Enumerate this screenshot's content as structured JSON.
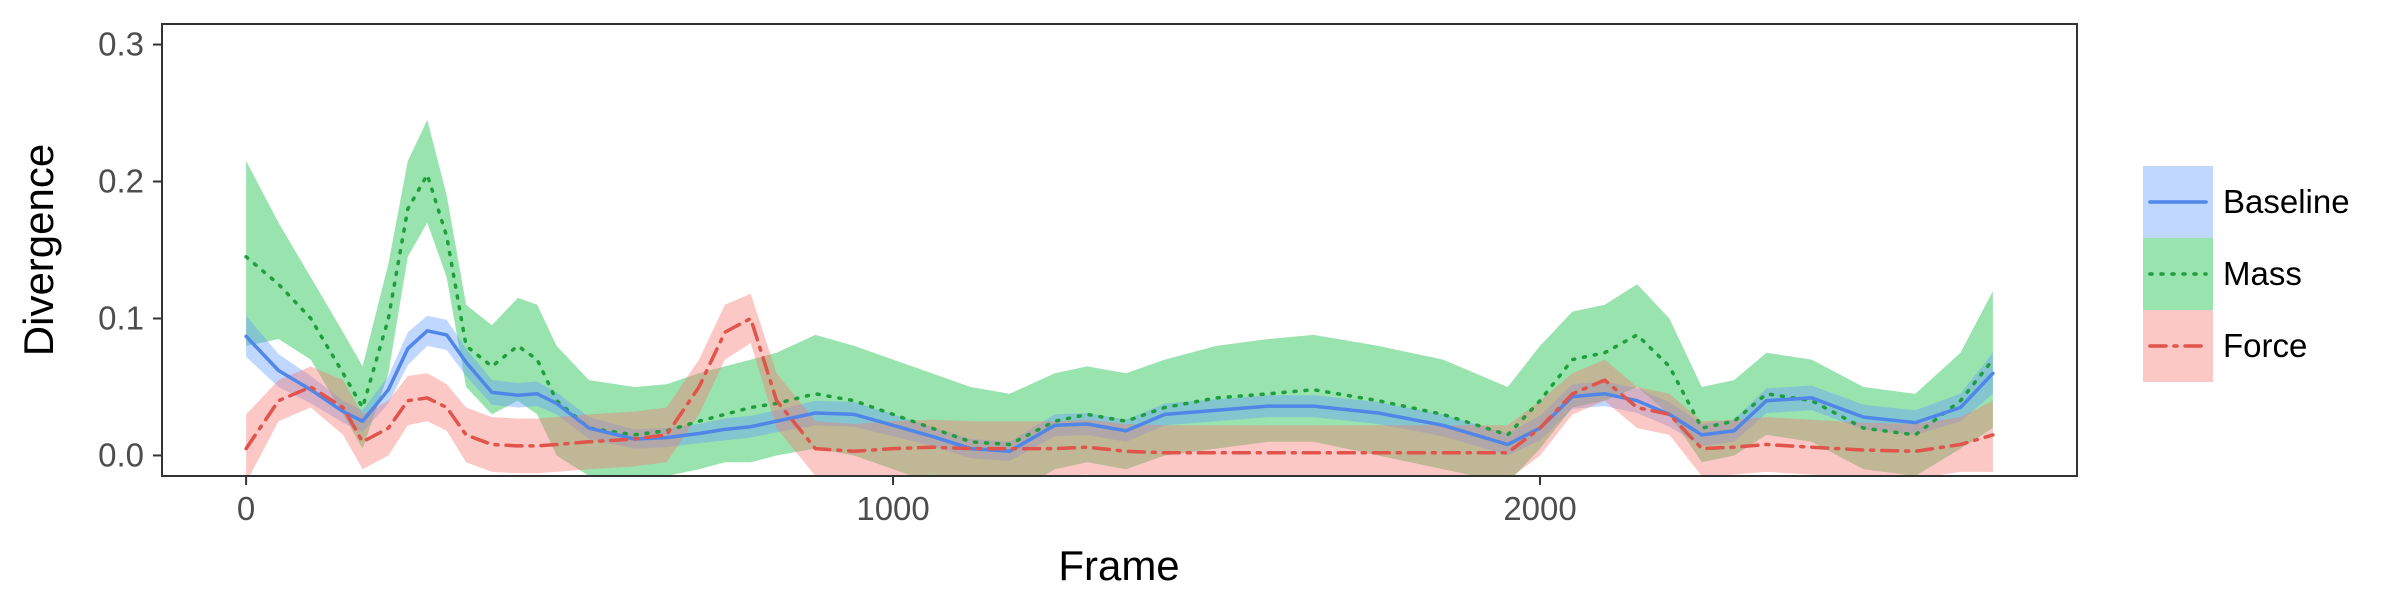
{
  "chart_data": {
    "type": "line",
    "xlabel": "Frame",
    "ylabel": "Divergence",
    "xlim": [
      -130,
      2830
    ],
    "ylim": [
      -0.015,
      0.315
    ],
    "x_ticks": [
      0,
      1000,
      2000
    ],
    "y_ticks": [
      0.0,
      0.1,
      0.2,
      0.3
    ],
    "y_tick_labels": [
      "0.0",
      "0.1",
      "0.2",
      "0.3"
    ],
    "grid": false,
    "legend_position": "right",
    "x": [
      0,
      50,
      100,
      150,
      180,
      220,
      250,
      280,
      310,
      340,
      380,
      420,
      450,
      480,
      530,
      600,
      650,
      700,
      740,
      780,
      820,
      880,
      940,
      1000,
      1060,
      1120,
      1180,
      1250,
      1300,
      1360,
      1420,
      1500,
      1580,
      1650,
      1750,
      1850,
      1950,
      2000,
      2050,
      2100,
      2150,
      2200,
      2250,
      2300,
      2350,
      2420,
      2500,
      2580,
      2650,
      2700
    ],
    "series": [
      {
        "name": "Baseline",
        "color": "#619CFF",
        "line_color": "#4F86E8",
        "dash": "solid",
        "values": [
          0.087,
          0.062,
          0.048,
          0.032,
          0.025,
          0.048,
          0.078,
          0.091,
          0.088,
          0.068,
          0.046,
          0.044,
          0.045,
          0.038,
          0.02,
          0.012,
          0.013,
          0.016,
          0.019,
          0.021,
          0.025,
          0.031,
          0.03,
          0.022,
          0.014,
          0.005,
          0.003,
          0.022,
          0.023,
          0.018,
          0.03,
          0.033,
          0.036,
          0.036,
          0.031,
          0.022,
          0.008,
          0.02,
          0.043,
          0.045,
          0.04,
          0.03,
          0.015,
          0.018,
          0.04,
          0.042,
          0.028,
          0.024,
          0.035,
          0.06
        ],
        "lower": [
          0.072,
          0.05,
          0.038,
          0.024,
          0.017,
          0.038,
          0.066,
          0.08,
          0.077,
          0.058,
          0.037,
          0.035,
          0.036,
          0.03,
          0.012,
          0.005,
          0.006,
          0.009,
          0.011,
          0.013,
          0.017,
          0.022,
          0.021,
          0.014,
          0.007,
          -0.002,
          -0.004,
          0.014,
          0.015,
          0.01,
          0.022,
          0.025,
          0.028,
          0.028,
          0.023,
          0.014,
          0.0,
          0.011,
          0.034,
          0.036,
          0.031,
          0.021,
          0.007,
          0.01,
          0.031,
          0.033,
          0.019,
          0.015,
          0.025,
          0.045
        ],
        "upper": [
          0.102,
          0.074,
          0.058,
          0.04,
          0.033,
          0.058,
          0.09,
          0.102,
          0.099,
          0.078,
          0.055,
          0.053,
          0.054,
          0.046,
          0.028,
          0.019,
          0.02,
          0.023,
          0.027,
          0.029,
          0.033,
          0.04,
          0.039,
          0.03,
          0.021,
          0.012,
          0.01,
          0.03,
          0.031,
          0.026,
          0.038,
          0.041,
          0.044,
          0.044,
          0.039,
          0.03,
          0.016,
          0.029,
          0.052,
          0.054,
          0.049,
          0.039,
          0.023,
          0.026,
          0.049,
          0.051,
          0.037,
          0.033,
          0.045,
          0.075
        ]
      },
      {
        "name": "Mass",
        "color": "#00BA38",
        "line_color": "#1E9E3C",
        "dash": "dotted",
        "values": [
          0.145,
          0.125,
          0.1,
          0.06,
          0.035,
          0.1,
          0.18,
          0.205,
          0.16,
          0.08,
          0.065,
          0.08,
          0.07,
          0.04,
          0.02,
          0.015,
          0.018,
          0.025,
          0.03,
          0.035,
          0.038,
          0.045,
          0.04,
          0.03,
          0.02,
          0.01,
          0.008,
          0.025,
          0.03,
          0.025,
          0.035,
          0.042,
          0.045,
          0.048,
          0.04,
          0.03,
          0.015,
          0.04,
          0.07,
          0.075,
          0.088,
          0.065,
          0.02,
          0.025,
          0.045,
          0.04,
          0.02,
          0.015,
          0.04,
          0.07
        ],
        "lower": [
          0.08,
          0.085,
          0.07,
          0.03,
          0.005,
          0.06,
          0.145,
          0.17,
          0.13,
          0.05,
          0.03,
          0.04,
          0.03,
          0.0,
          -0.015,
          -0.02,
          -0.015,
          -0.01,
          -0.005,
          -0.005,
          0.0,
          0.005,
          0.0,
          -0.01,
          -0.02,
          -0.03,
          -0.03,
          -0.01,
          -0.005,
          -0.01,
          0.0,
          0.005,
          0.01,
          0.01,
          0.0,
          -0.01,
          -0.02,
          0.005,
          0.035,
          0.04,
          0.05,
          0.03,
          -0.005,
          0.0,
          0.015,
          0.01,
          -0.01,
          -0.015,
          0.005,
          0.02
        ],
        "upper": [
          0.215,
          0.17,
          0.13,
          0.09,
          0.065,
          0.14,
          0.215,
          0.245,
          0.19,
          0.11,
          0.095,
          0.115,
          0.11,
          0.08,
          0.055,
          0.05,
          0.052,
          0.06,
          0.065,
          0.07,
          0.075,
          0.088,
          0.08,
          0.07,
          0.06,
          0.05,
          0.045,
          0.06,
          0.065,
          0.06,
          0.07,
          0.08,
          0.085,
          0.088,
          0.08,
          0.07,
          0.05,
          0.08,
          0.105,
          0.11,
          0.125,
          0.1,
          0.05,
          0.055,
          0.075,
          0.07,
          0.05,
          0.045,
          0.075,
          0.12
        ]
      },
      {
        "name": "Force",
        "color": "#F8766D",
        "line_color": "#E0544B",
        "dash": "dashdot",
        "values": [
          0.005,
          0.04,
          0.05,
          0.035,
          0.01,
          0.02,
          0.04,
          0.042,
          0.035,
          0.015,
          0.008,
          0.007,
          0.007,
          0.008,
          0.01,
          0.012,
          0.015,
          0.05,
          0.09,
          0.1,
          0.04,
          0.005,
          0.003,
          0.005,
          0.006,
          0.005,
          0.005,
          0.005,
          0.006,
          0.003,
          0.002,
          0.002,
          0.002,
          0.002,
          0.002,
          0.002,
          0.002,
          0.02,
          0.045,
          0.055,
          0.035,
          0.03,
          0.005,
          0.006,
          0.008,
          0.006,
          0.004,
          0.003,
          0.008,
          0.015
        ],
        "lower": [
          -0.02,
          0.025,
          0.035,
          0.015,
          -0.01,
          0.0,
          0.022,
          0.025,
          0.018,
          -0.005,
          -0.012,
          -0.013,
          -0.013,
          -0.012,
          -0.01,
          -0.008,
          -0.005,
          0.03,
          0.07,
          0.082,
          0.02,
          -0.015,
          -0.017,
          -0.015,
          -0.014,
          -0.015,
          -0.015,
          -0.015,
          -0.014,
          -0.017,
          -0.018,
          -0.018,
          -0.018,
          -0.018,
          -0.018,
          -0.018,
          -0.018,
          0.0,
          0.03,
          0.04,
          0.02,
          0.015,
          -0.015,
          -0.014,
          -0.012,
          -0.014,
          -0.016,
          -0.017,
          -0.012,
          -0.012
        ],
        "upper": [
          0.03,
          0.055,
          0.065,
          0.055,
          0.03,
          0.04,
          0.058,
          0.06,
          0.052,
          0.035,
          0.028,
          0.027,
          0.027,
          0.028,
          0.03,
          0.032,
          0.035,
          0.07,
          0.11,
          0.118,
          0.06,
          0.025,
          0.023,
          0.025,
          0.026,
          0.025,
          0.025,
          0.025,
          0.026,
          0.023,
          0.022,
          0.022,
          0.022,
          0.022,
          0.022,
          0.022,
          0.022,
          0.04,
          0.06,
          0.07,
          0.05,
          0.045,
          0.025,
          0.026,
          0.028,
          0.026,
          0.024,
          0.023,
          0.028,
          0.04
        ]
      }
    ]
  }
}
